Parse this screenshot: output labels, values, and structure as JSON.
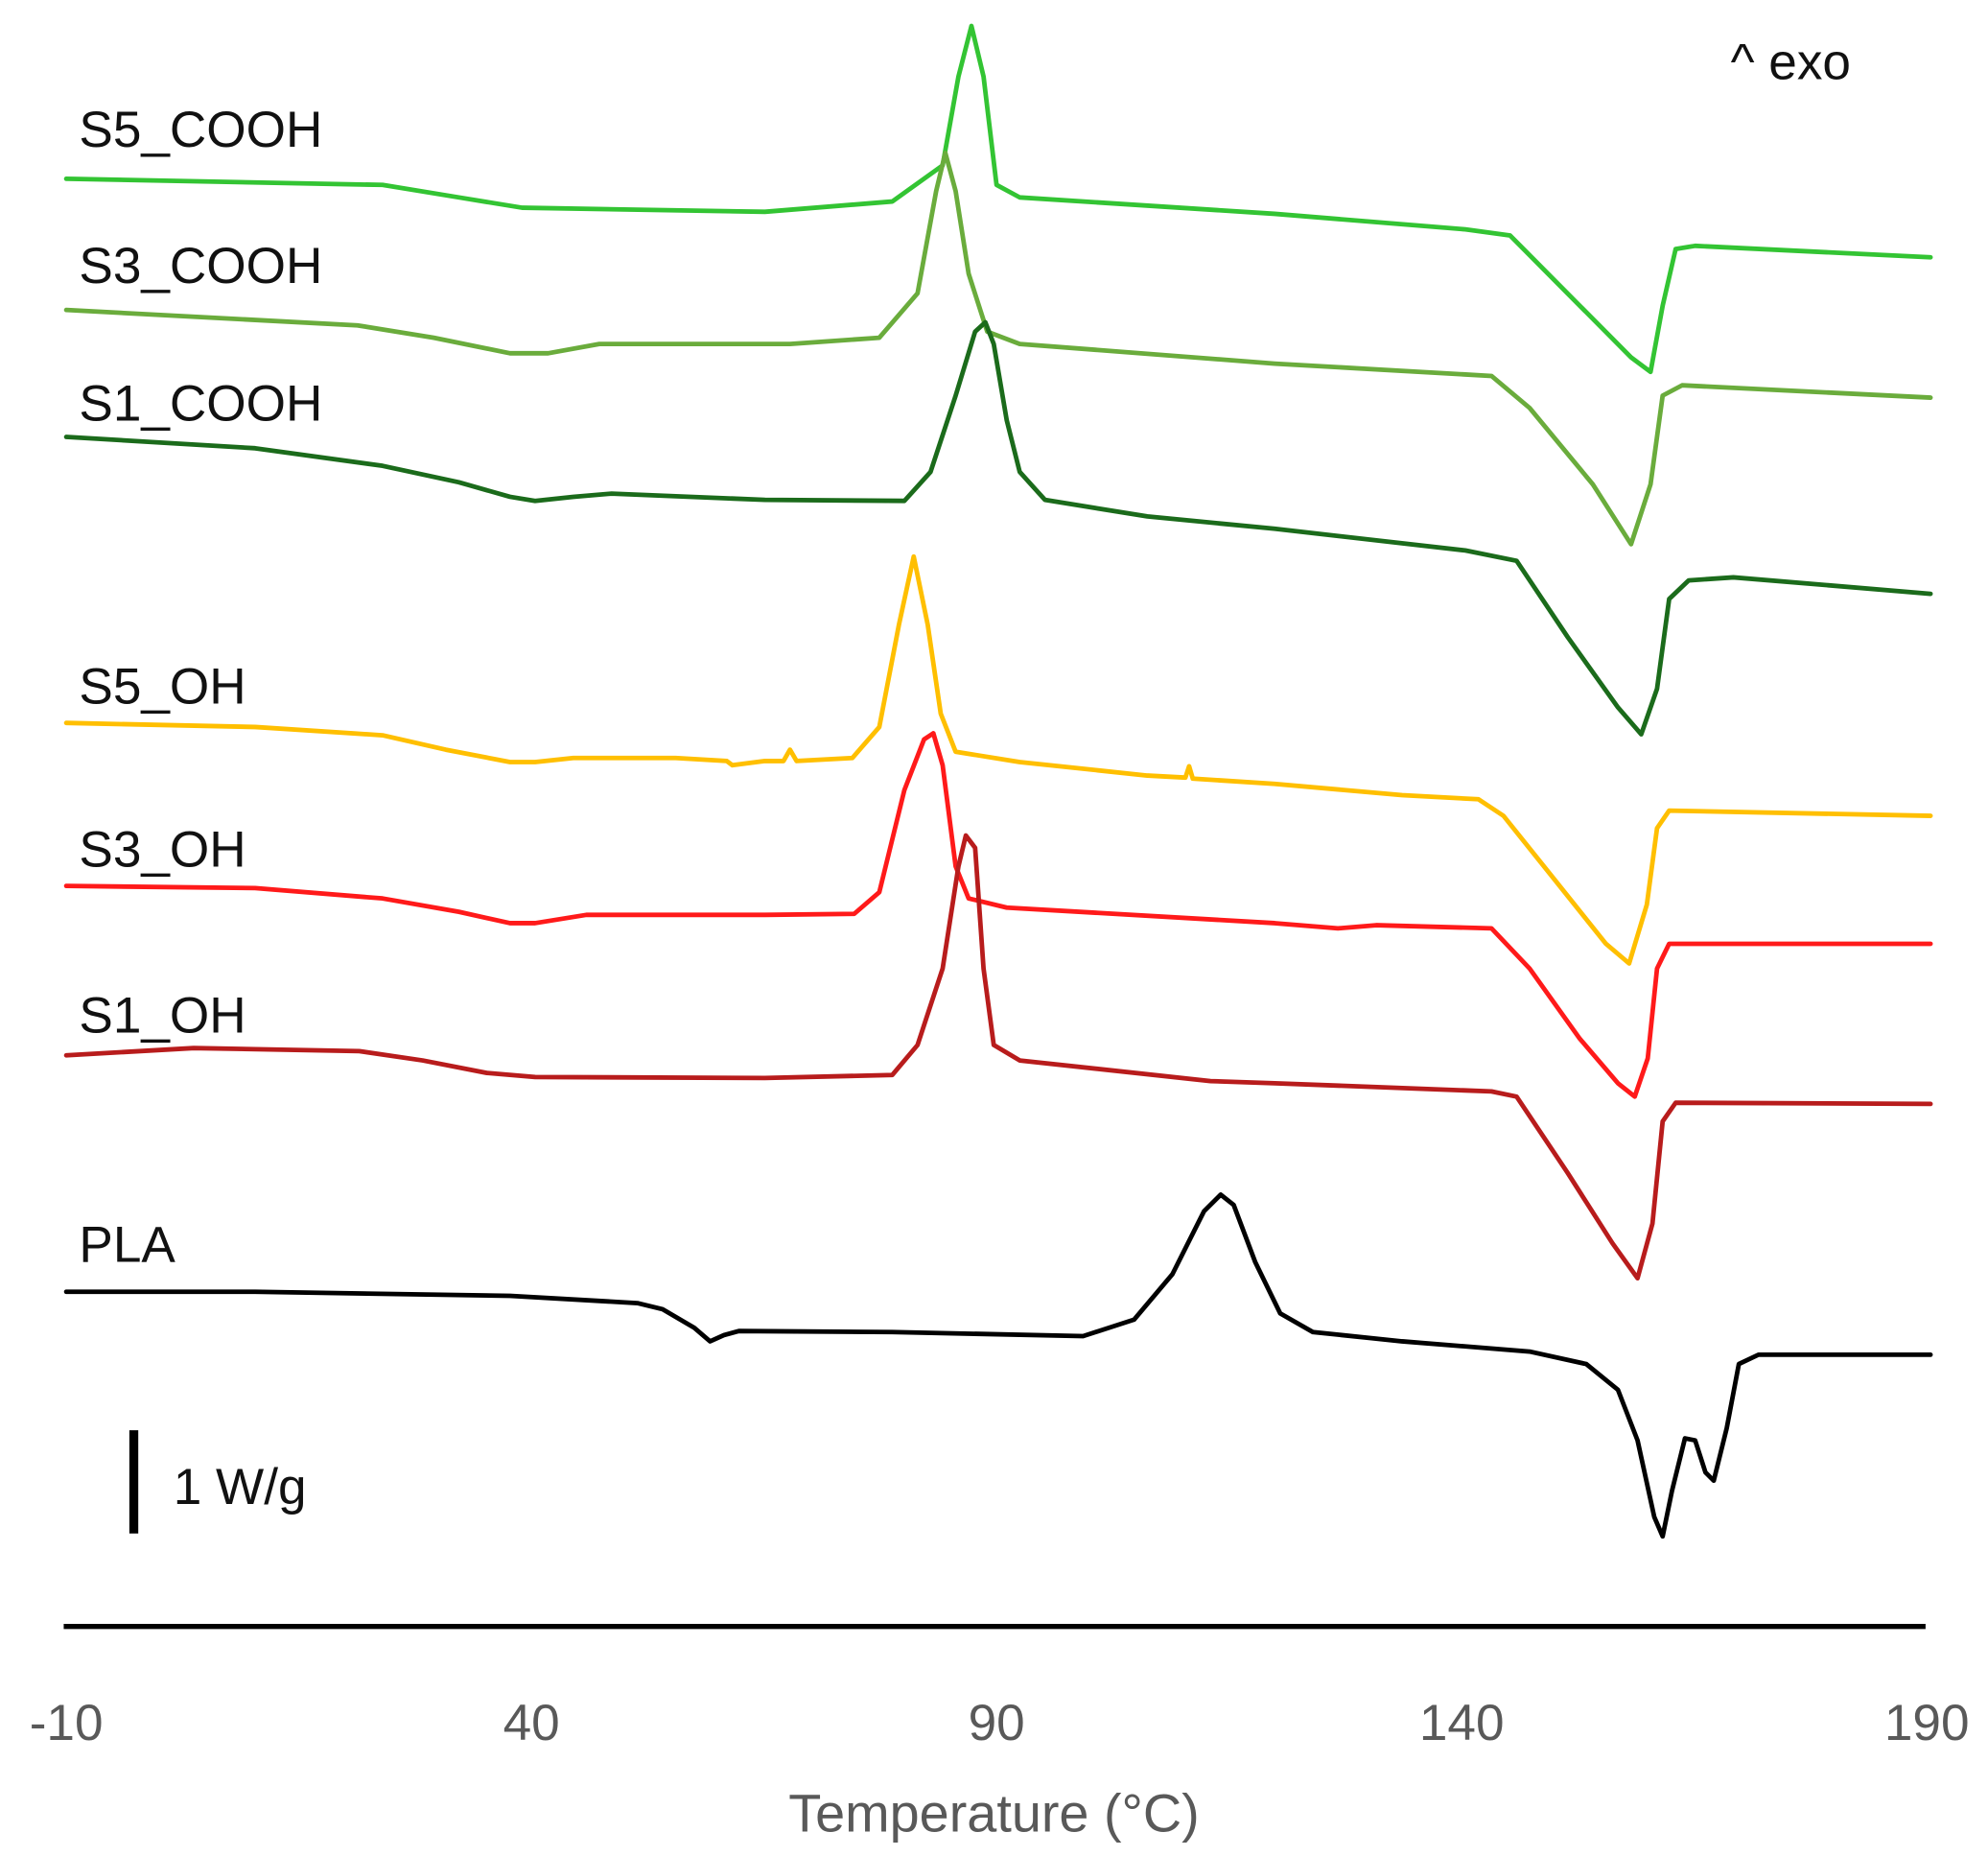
{
  "chart_data": {
    "type": "line",
    "title": "",
    "xlabel": "Temperature (°C)",
    "ylabel": "",
    "xlim": [
      -10,
      190
    ],
    "xticks": [
      "-10",
      "40",
      "90",
      "140",
      "190"
    ],
    "grid": false,
    "annotation_exo": "^ exo",
    "scale_bar": {
      "label": "1 W/g",
      "value": 1
    },
    "y_units": "W/g (stacked, offset)",
    "series": [
      {
        "name": "S5_COOH",
        "color": "#33c433",
        "points": [
          [
            -10,
            14.01
          ],
          [
            24,
            13.95
          ],
          [
            32.2,
            13.83
          ],
          [
            39,
            13.73
          ],
          [
            65.1,
            13.69
          ],
          [
            78.8,
            13.79
          ],
          [
            84.2,
            14.14
          ],
          [
            85.9,
            15.0
          ],
          [
            87.3,
            15.49
          ],
          [
            88.6,
            15.0
          ],
          [
            90,
            13.95
          ],
          [
            92.5,
            13.83
          ],
          [
            119.9,
            13.67
          ],
          [
            140.4,
            13.52
          ],
          [
            145.2,
            13.46
          ],
          [
            152.7,
            12.78
          ],
          [
            158.2,
            12.28
          ],
          [
            160.3,
            12.14
          ],
          [
            161.6,
            12.78
          ],
          [
            163,
            13.33
          ],
          [
            165.1,
            13.36
          ],
          [
            190.4,
            13.25
          ]
        ]
      },
      {
        "name": "S3_COOH",
        "color": "#6aac3c",
        "points": [
          [
            -10,
            12.74
          ],
          [
            21.3,
            12.59
          ],
          [
            29.5,
            12.47
          ],
          [
            37.7,
            12.32
          ],
          [
            41.8,
            12.32
          ],
          [
            47.3,
            12.41
          ],
          [
            67.8,
            12.41
          ],
          [
            77.4,
            12.47
          ],
          [
            81.5,
            12.9
          ],
          [
            83.5,
            13.89
          ],
          [
            84.5,
            14.26
          ],
          [
            85.6,
            13.89
          ],
          [
            87,
            13.09
          ],
          [
            89,
            12.53
          ],
          [
            92.5,
            12.41
          ],
          [
            119.9,
            12.22
          ],
          [
            143.2,
            12.1
          ],
          [
            147.3,
            11.79
          ],
          [
            154.1,
            11.05
          ],
          [
            158.2,
            10.47
          ],
          [
            160.3,
            11.05
          ],
          [
            161.6,
            11.91
          ],
          [
            163.7,
            12.01
          ],
          [
            190.4,
            11.89
          ]
        ]
      },
      {
        "name": "S1_COOH",
        "color": "#1b6b1b",
        "points": [
          [
            -10,
            11.51
          ],
          [
            10.3,
            11.4
          ],
          [
            24,
            11.23
          ],
          [
            32.2,
            11.07
          ],
          [
            37.7,
            10.93
          ],
          [
            40.4,
            10.89
          ],
          [
            44.5,
            10.93
          ],
          [
            48.6,
            10.96
          ],
          [
            65.1,
            10.9
          ],
          [
            80.1,
            10.89
          ],
          [
            82.9,
            11.17
          ],
          [
            85.6,
            11.91
          ],
          [
            87.7,
            12.53
          ],
          [
            88.8,
            12.62
          ],
          [
            89.7,
            12.41
          ],
          [
            91.1,
            11.67
          ],
          [
            92.5,
            11.17
          ],
          [
            95.2,
            10.9
          ],
          [
            106.2,
            10.74
          ],
          [
            119.9,
            10.62
          ],
          [
            140.4,
            10.41
          ],
          [
            145.9,
            10.31
          ],
          [
            151.4,
            9.57
          ],
          [
            156.8,
            8.89
          ],
          [
            159.3,
            8.63
          ],
          [
            161,
            9.07
          ],
          [
            162.3,
            9.94
          ],
          [
            164.4,
            10.12
          ],
          [
            169.2,
            10.15
          ],
          [
            190.4,
            9.99
          ]
        ]
      },
      {
        "name": "S5_OH",
        "color": "#ffbf00",
        "points": [
          [
            -10,
            8.74
          ],
          [
            10.3,
            8.7
          ],
          [
            24,
            8.62
          ],
          [
            30.8,
            8.48
          ],
          [
            37.7,
            8.36
          ],
          [
            40.4,
            8.36
          ],
          [
            44.5,
            8.4
          ],
          [
            55.5,
            8.4
          ],
          [
            61,
            8.37
          ],
          [
            61.6,
            8.33
          ],
          [
            65.1,
            8.37
          ],
          [
            67.1,
            8.37
          ],
          [
            67.8,
            8.48
          ],
          [
            68.5,
            8.37
          ],
          [
            74.5,
            8.4
          ],
          [
            77.4,
            8.7
          ],
          [
            79.5,
            9.69
          ],
          [
            81.1,
            10.35
          ],
          [
            82.6,
            9.69
          ],
          [
            84,
            8.83
          ],
          [
            85.6,
            8.46
          ],
          [
            92.5,
            8.36
          ],
          [
            106.2,
            8.23
          ],
          [
            110.3,
            8.21
          ],
          [
            110.7,
            8.32
          ],
          [
            111.1,
            8.2
          ],
          [
            119.9,
            8.15
          ],
          [
            133.6,
            8.04
          ],
          [
            141.8,
            8.0
          ],
          [
            144.5,
            7.84
          ],
          [
            150,
            7.22
          ],
          [
            155.5,
            6.6
          ],
          [
            158,
            6.41
          ],
          [
            159.9,
            6.98
          ],
          [
            161,
            7.72
          ],
          [
            162.3,
            7.89
          ],
          [
            190.4,
            7.84
          ]
        ]
      },
      {
        "name": "S3_OH",
        "color": "#ff1a1a",
        "points": [
          [
            -10,
            7.16
          ],
          [
            10.3,
            7.14
          ],
          [
            24,
            7.04
          ],
          [
            32.2,
            6.91
          ],
          [
            37.7,
            6.8
          ],
          [
            40.4,
            6.8
          ],
          [
            45.9,
            6.88
          ],
          [
            65.1,
            6.88
          ],
          [
            74.7,
            6.89
          ],
          [
            77.4,
            7.1
          ],
          [
            80.1,
            8.09
          ],
          [
            82.2,
            8.58
          ],
          [
            83.2,
            8.64
          ],
          [
            84.2,
            8.33
          ],
          [
            85.6,
            7.35
          ],
          [
            87,
            7.04
          ],
          [
            91.1,
            6.95
          ],
          [
            119.9,
            6.8
          ],
          [
            126.7,
            6.75
          ],
          [
            130.8,
            6.78
          ],
          [
            143.2,
            6.75
          ],
          [
            147.3,
            6.36
          ],
          [
            152.7,
            5.68
          ],
          [
            156.8,
            5.25
          ],
          [
            158.6,
            5.12
          ],
          [
            160,
            5.49
          ],
          [
            161,
            6.36
          ],
          [
            162.3,
            6.6
          ],
          [
            190.4,
            6.6
          ]
        ]
      },
      {
        "name": "S1_OH",
        "color": "#b81c1c",
        "points": [
          [
            -10,
            5.52
          ],
          [
            3.7,
            5.59
          ],
          [
            21.5,
            5.56
          ],
          [
            28.3,
            5.47
          ],
          [
            35.2,
            5.35
          ],
          [
            40.4,
            5.31
          ],
          [
            65.1,
            5.3
          ],
          [
            78.8,
            5.33
          ],
          [
            81.5,
            5.62
          ],
          [
            84.2,
            6.36
          ],
          [
            85.9,
            7.35
          ],
          [
            86.7,
            7.65
          ],
          [
            87.7,
            7.53
          ],
          [
            88.6,
            6.36
          ],
          [
            89.7,
            5.62
          ],
          [
            92.5,
            5.47
          ],
          [
            113,
            5.27
          ],
          [
            119.9,
            5.25
          ],
          [
            143.2,
            5.17
          ],
          [
            145.9,
            5.12
          ],
          [
            151.4,
            4.38
          ],
          [
            156.2,
            3.7
          ],
          [
            158.9,
            3.36
          ],
          [
            160.5,
            3.89
          ],
          [
            161.6,
            4.88
          ],
          [
            163,
            5.06
          ],
          [
            190.4,
            5.05
          ]
        ]
      },
      {
        "name": "PLA",
        "color": "#000000",
        "points": [
          [
            -10,
            3.23
          ],
          [
            10.3,
            3.23
          ],
          [
            37.7,
            3.19
          ],
          [
            51.4,
            3.12
          ],
          [
            54.1,
            3.06
          ],
          [
            57.5,
            2.88
          ],
          [
            59.2,
            2.75
          ],
          [
            60.7,
            2.81
          ],
          [
            62.3,
            2.85
          ],
          [
            78.8,
            2.84
          ],
          [
            99.3,
            2.8
          ],
          [
            104.8,
            2.96
          ],
          [
            108.9,
            3.4
          ],
          [
            112.3,
            4.01
          ],
          [
            114.1,
            4.17
          ],
          [
            115.5,
            4.07
          ],
          [
            117.8,
            3.52
          ],
          [
            120.5,
            3.02
          ],
          [
            124,
            2.84
          ],
          [
            133.6,
            2.75
          ],
          [
            147.3,
            2.65
          ],
          [
            153.4,
            2.53
          ],
          [
            156.8,
            2.28
          ],
          [
            158.9,
            1.79
          ],
          [
            160.7,
            1.05
          ],
          [
            161.6,
            0.86
          ],
          [
            162.6,
            1.3
          ],
          [
            164,
            1.81
          ],
          [
            165.1,
            1.79
          ],
          [
            166.2,
            1.48
          ],
          [
            167.1,
            1.4
          ],
          [
            168.5,
            1.91
          ],
          [
            169.8,
            2.53
          ],
          [
            171.9,
            2.62
          ],
          [
            190.4,
            2.62
          ]
        ]
      }
    ]
  }
}
